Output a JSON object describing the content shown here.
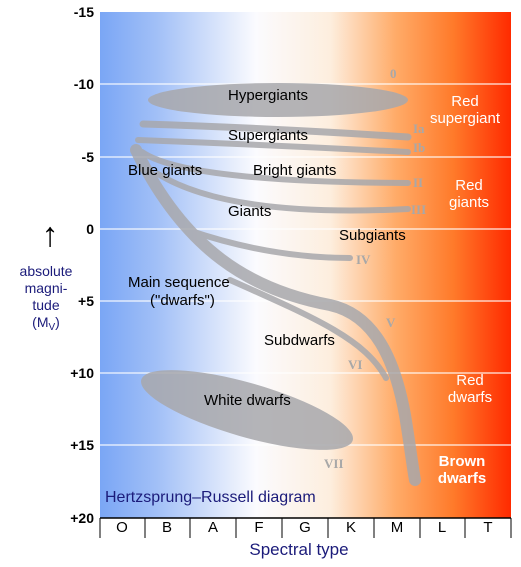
{
  "title": "Hertzsprung–Russell diagram",
  "x_axis": {
    "label": "Spectral type",
    "ticks": [
      "O",
      "B",
      "A",
      "F",
      "G",
      "K",
      "M",
      "L",
      "T"
    ]
  },
  "y_axis": {
    "label_line1": "absolute",
    "label_line2": "magni-",
    "label_line3": "tude",
    "label_symbol": "(M",
    "label_subscript": "V",
    "label_close": ")",
    "arrow": "↑",
    "ticks": [
      "-15",
      "-10",
      "-5",
      "0",
      "+5",
      "+10",
      "+15",
      "+20"
    ]
  },
  "regions": {
    "hypergiants": "Hypergiants",
    "supergiants": "Supergiants",
    "blue_giants": "Blue giants",
    "bright_giants": "Bright giants",
    "giants": "Giants",
    "subgiants": "Subgiants",
    "main_sequence_line1": "Main sequence",
    "main_sequence_line2": "(\"dwarfs\")",
    "subdwarfs": "Subdwarfs",
    "white_dwarfs": "White dwarfs"
  },
  "luminosity_classes": [
    "0",
    "Ia",
    "Ib",
    "II",
    "III",
    "IV",
    "V",
    "VI",
    "VII"
  ],
  "right_labels": {
    "red_supergiant_line1": "Red",
    "red_supergiant_line2": "supergiant",
    "red_giants_line1": "Red",
    "red_giants_line2": "giants",
    "red_dwarfs_line1": "Red",
    "red_dwarfs_line2": "dwarfs",
    "brown_dwarfs_line1": "Brown",
    "brown_dwarfs_line2": "dwarfs"
  },
  "colors": {
    "blue_edge": "#7aa6f5",
    "white_mid": "#fbfbfe",
    "orange": "#ff9a4a",
    "red_edge": "#ff2a00",
    "band": "#a8a8ac",
    "class_label": "#a8a8a8",
    "axis_text": "#000000",
    "navy_text": "#1b1b7a"
  }
}
